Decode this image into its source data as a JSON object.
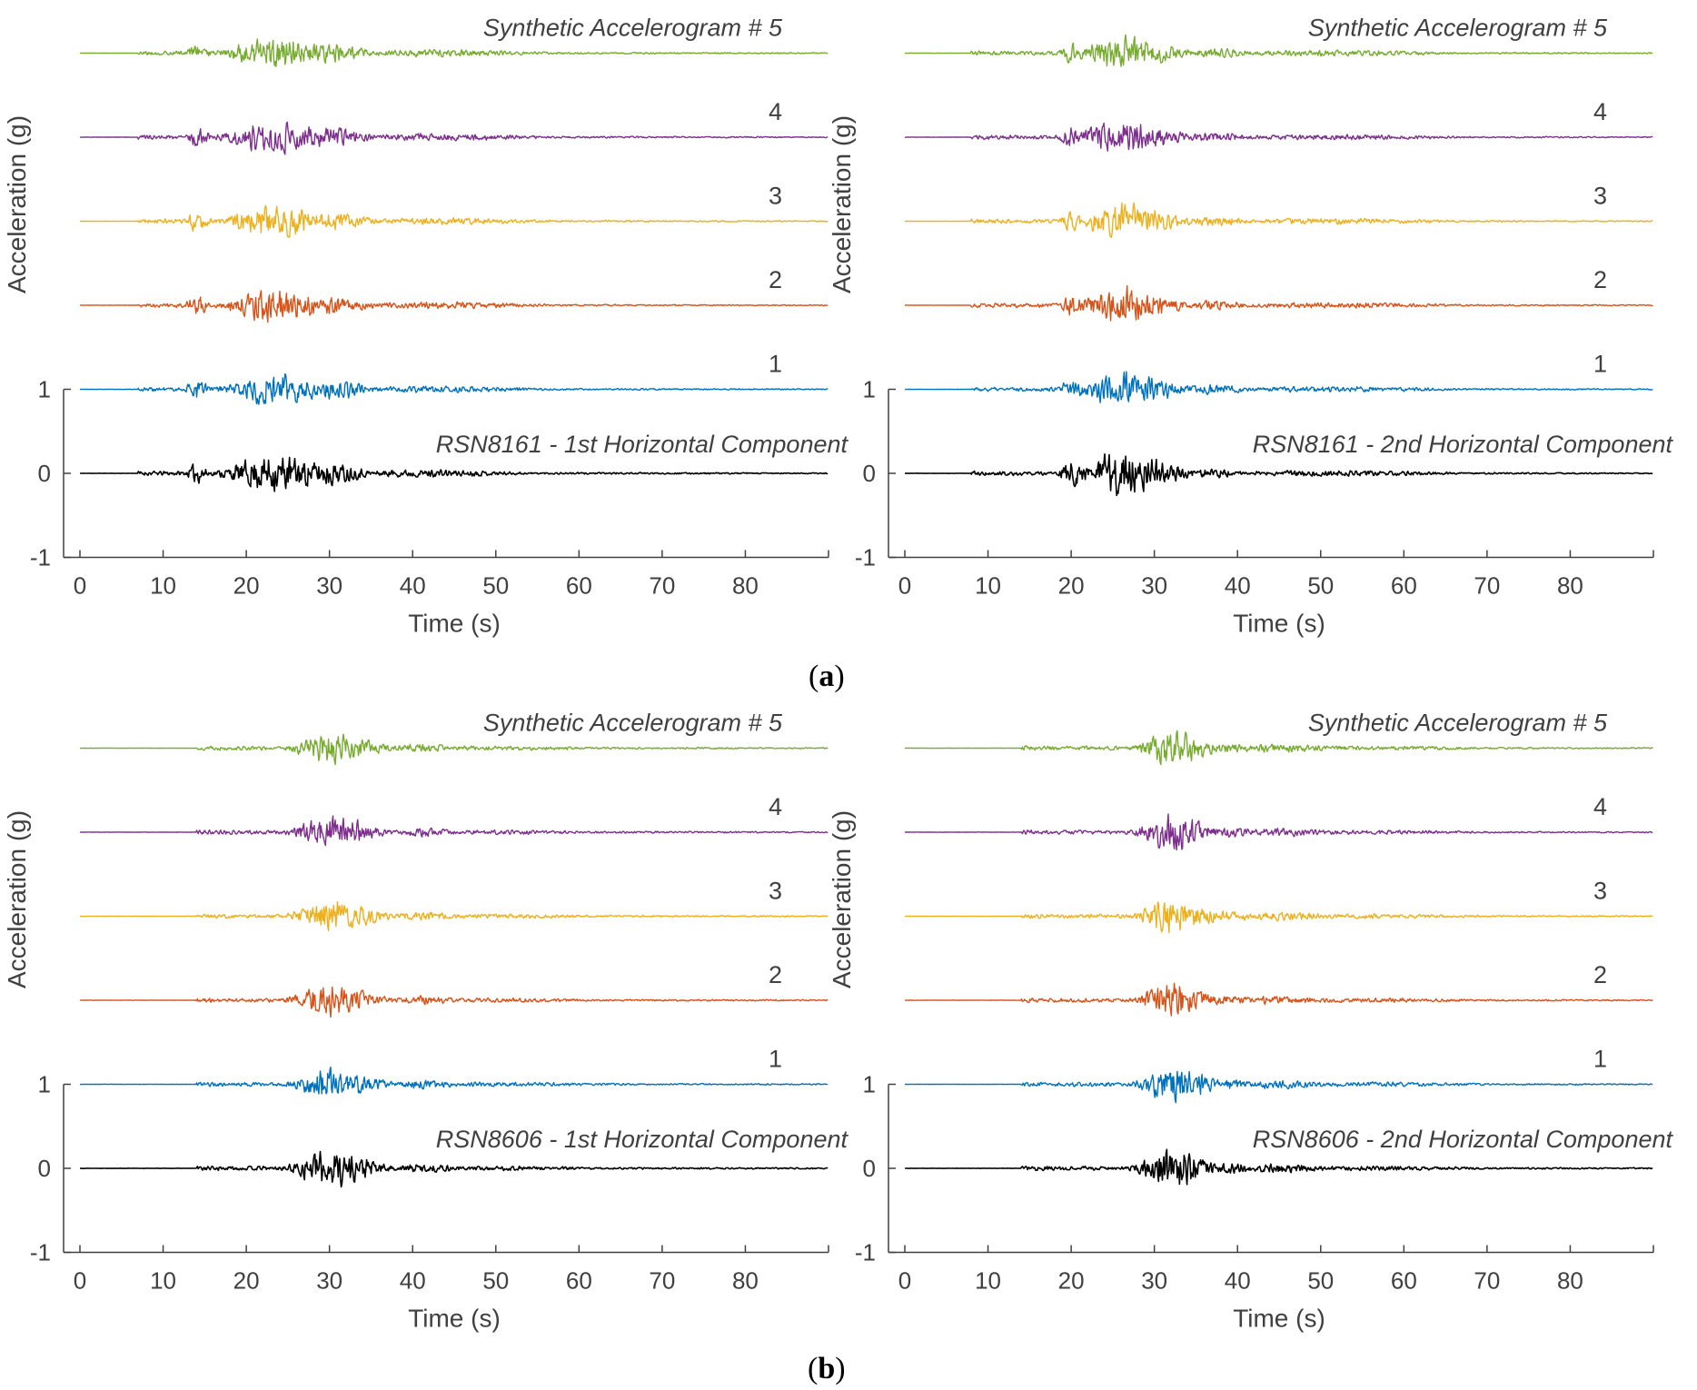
{
  "figure": {
    "labels": [
      {
        "open": "(",
        "letter": "a",
        "close": ")"
      },
      {
        "open": "(",
        "letter": "b",
        "close": ")"
      }
    ]
  },
  "colors": {
    "record": "#000000",
    "syn1": "#0072bd",
    "syn2": "#d95319",
    "syn3": "#edb120",
    "syn4": "#7e2f8e",
    "syn5": "#77ac30",
    "axis": "#404040",
    "text": "#404040"
  },
  "chart_data": [
    {
      "type": "line",
      "group": "a",
      "ylabel": "Acceleration (g)",
      "xlabel": "Time (s)",
      "xlim": [
        0,
        90
      ],
      "ylim": [
        -1,
        1
      ],
      "xticks": [
        0,
        10,
        20,
        30,
        40,
        50,
        60,
        70,
        80
      ],
      "yticks": [
        -1,
        0,
        1
      ],
      "record_label": "RSN8161 - 1st Horizontal Component",
      "series": [
        {
          "name": "RSN8161 - 1st Horizontal Component",
          "offset": 0,
          "color_key": "record",
          "label_text": "RSN8161 - 1st Horizontal Component",
          "start": 7,
          "bursts": [
            [
              14,
              0.9,
              0.14
            ],
            [
              23,
              4.5,
              0.25
            ],
            [
              29,
              3,
              0.18
            ],
            [
              40,
              8,
              0.05
            ]
          ],
          "peak": 0.32,
          "seed": 11
        },
        {
          "name": "Synthetic Accelerogram # 1",
          "offset": 1,
          "color_key": "syn1",
          "label_text": "1",
          "start": 7,
          "bursts": [
            [
              14,
              1.0,
              0.16
            ],
            [
              23,
              4.5,
              0.22
            ],
            [
              30,
              3,
              0.14
            ],
            [
              42,
              8,
              0.05
            ]
          ],
          "peak": 0.3,
          "seed": 21
        },
        {
          "name": "Synthetic Accelerogram # 2",
          "offset": 2,
          "color_key": "syn2",
          "label_text": "2",
          "start": 7,
          "bursts": [
            [
              14,
              1.0,
              0.14
            ],
            [
              23,
              4.5,
              0.22
            ],
            [
              30,
              3,
              0.13
            ],
            [
              42,
              8,
              0.05
            ]
          ],
          "peak": 0.3,
          "seed": 31
        },
        {
          "name": "Synthetic Accelerogram # 3",
          "offset": 3,
          "color_key": "syn3",
          "label_text": "3",
          "start": 7,
          "bursts": [
            [
              14,
              1.0,
              0.14
            ],
            [
              23,
              4.5,
              0.22
            ],
            [
              30,
              3,
              0.13
            ],
            [
              42,
              8,
              0.05
            ]
          ],
          "peak": 0.3,
          "seed": 41
        },
        {
          "name": "Synthetic Accelerogram # 4",
          "offset": 4,
          "color_key": "syn4",
          "label_text": "4",
          "start": 7,
          "bursts": [
            [
              14,
              1.0,
              0.14
            ],
            [
              23,
              4.5,
              0.22
            ],
            [
              30,
              3,
              0.13
            ],
            [
              42,
              8,
              0.05
            ]
          ],
          "peak": 0.3,
          "seed": 51
        },
        {
          "name": "Synthetic Accelerogram # 5",
          "offset": 5,
          "color_key": "syn5",
          "label_text": "Synthetic Accelerogram # 5",
          "start": 7,
          "bursts": [
            [
              14,
              1.0,
              0.13
            ],
            [
              23,
              4.5,
              0.22
            ],
            [
              30,
              3,
              0.13
            ],
            [
              42,
              8,
              0.05
            ]
          ],
          "peak": 0.3,
          "seed": 61
        }
      ]
    },
    {
      "type": "line",
      "group": "a",
      "ylabel": "Acceleration (g)",
      "xlabel": "Time (s)",
      "xlim": [
        0,
        90
      ],
      "ylim": [
        -1,
        1
      ],
      "xticks": [
        0,
        10,
        20,
        30,
        40,
        50,
        60,
        70,
        80
      ],
      "yticks": [
        -1,
        0,
        1
      ],
      "record_label": "RSN8161 - 2nd Horizontal Component",
      "series": [
        {
          "name": "RSN8161 - 2nd Horizontal Component",
          "offset": 0,
          "color_key": "record",
          "label_text": "RSN8161 - 2nd Horizontal Component",
          "start": 8,
          "bursts": [
            [
              20,
              1.2,
              0.18
            ],
            [
              26,
              4,
              0.3
            ],
            [
              37,
              2,
              0.07
            ],
            [
              50,
              10,
              0.04
            ]
          ],
          "peak": 0.4,
          "seed": 12
        },
        {
          "name": "Synthetic Accelerogram # 1",
          "offset": 1,
          "color_key": "syn1",
          "label_text": "1",
          "start": 8,
          "bursts": [
            [
              20,
              1.2,
              0.14
            ],
            [
              26,
              4,
              0.24
            ],
            [
              37,
              3,
              0.07
            ],
            [
              50,
              10,
              0.04
            ]
          ],
          "peak": 0.3,
          "seed": 22
        },
        {
          "name": "Synthetic Accelerogram # 2",
          "offset": 2,
          "color_key": "syn2",
          "label_text": "2",
          "start": 8,
          "bursts": [
            [
              20,
              1.2,
              0.14
            ],
            [
              26,
              4,
              0.24
            ],
            [
              37,
              3,
              0.07
            ],
            [
              50,
              10,
              0.04
            ]
          ],
          "peak": 0.32,
          "seed": 32
        },
        {
          "name": "Synthetic Accelerogram # 3",
          "offset": 3,
          "color_key": "syn3",
          "label_text": "3",
          "start": 8,
          "bursts": [
            [
              20,
              1.2,
              0.14
            ],
            [
              26,
              4,
              0.24
            ],
            [
              37,
              3,
              0.07
            ],
            [
              50,
              10,
              0.04
            ]
          ],
          "peak": 0.3,
          "seed": 42
        },
        {
          "name": "Synthetic Accelerogram # 4",
          "offset": 4,
          "color_key": "syn4",
          "label_text": "4",
          "start": 8,
          "bursts": [
            [
              20,
              1.2,
              0.14
            ],
            [
              26,
              4,
              0.24
            ],
            [
              37,
              3,
              0.07
            ],
            [
              50,
              10,
              0.04
            ]
          ],
          "peak": 0.32,
          "seed": 52
        },
        {
          "name": "Synthetic Accelerogram # 5",
          "offset": 5,
          "color_key": "syn5",
          "label_text": "Synthetic Accelerogram # 5",
          "start": 8,
          "bursts": [
            [
              20,
              1.2,
              0.14
            ],
            [
              26,
              4,
              0.24
            ],
            [
              37,
              3,
              0.07
            ],
            [
              50,
              10,
              0.04
            ]
          ],
          "peak": 0.32,
          "seed": 62
        }
      ]
    },
    {
      "type": "line",
      "group": "b",
      "ylabel": "Acceleration (g)",
      "xlabel": "Time (s)",
      "xlim": [
        0,
        90
      ],
      "ylim": [
        -1,
        1
      ],
      "xticks": [
        0,
        10,
        20,
        30,
        40,
        50,
        60,
        70,
        80
      ],
      "yticks": [
        -1,
        0,
        1
      ],
      "record_label": "RSN8606 - 1st Horizontal Component",
      "series": [
        {
          "name": "RSN8606 - 1st Horizontal Component",
          "offset": 0,
          "color_key": "record",
          "label_text": "RSN8606 - 1st Horizontal Component",
          "start": 14,
          "bursts": [
            [
              30,
              3.5,
              0.26
            ],
            [
              41,
              3,
              0.06
            ],
            [
              50,
              8,
              0.03
            ]
          ],
          "peak": 0.28,
          "seed": 13
        },
        {
          "name": "Synthetic Accelerogram # 1",
          "offset": 1,
          "color_key": "syn1",
          "label_text": "1",
          "start": 14,
          "bursts": [
            [
              30,
              3.5,
              0.22
            ],
            [
              41,
              3,
              0.06
            ],
            [
              50,
              8,
              0.03
            ]
          ],
          "peak": 0.22,
          "seed": 23
        },
        {
          "name": "Synthetic Accelerogram # 2",
          "offset": 2,
          "color_key": "syn2",
          "label_text": "2",
          "start": 14,
          "bursts": [
            [
              30,
              3.5,
              0.22
            ],
            [
              41,
              3,
              0.06
            ],
            [
              50,
              8,
              0.03
            ]
          ],
          "peak": 0.22,
          "seed": 33
        },
        {
          "name": "Synthetic Accelerogram # 3",
          "offset": 3,
          "color_key": "syn3",
          "label_text": "3",
          "start": 14,
          "bursts": [
            [
              30,
              3.5,
              0.22
            ],
            [
              41,
              3,
              0.06
            ],
            [
              50,
              8,
              0.03
            ]
          ],
          "peak": 0.22,
          "seed": 43
        },
        {
          "name": "Synthetic Accelerogram # 4",
          "offset": 4,
          "color_key": "syn4",
          "label_text": "4",
          "start": 14,
          "bursts": [
            [
              30,
              3.5,
              0.22
            ],
            [
              41,
              3,
              0.06
            ],
            [
              50,
              8,
              0.03
            ]
          ],
          "peak": 0.22,
          "seed": 53
        },
        {
          "name": "Synthetic Accelerogram # 5",
          "offset": 5,
          "color_key": "syn5",
          "label_text": "Synthetic Accelerogram # 5",
          "start": 14,
          "bursts": [
            [
              30,
              3.5,
              0.22
            ],
            [
              41,
              3,
              0.06
            ],
            [
              50,
              8,
              0.03
            ]
          ],
          "peak": 0.22,
          "seed": 63
        }
      ]
    },
    {
      "type": "line",
      "group": "b",
      "ylabel": "Acceleration (g)",
      "xlabel": "Time (s)",
      "xlim": [
        0,
        90
      ],
      "ylim": [
        -1,
        1
      ],
      "xticks": [
        0,
        10,
        20,
        30,
        40,
        50,
        60,
        70,
        80
      ],
      "yticks": [
        -1,
        0,
        1
      ],
      "record_label": "RSN8606 - 2nd Horizontal Component",
      "series": [
        {
          "name": "RSN8606 - 2nd Horizontal Component",
          "offset": 0,
          "color_key": "record",
          "label_text": "RSN8606 - 2nd Horizontal Component",
          "start": 14,
          "bursts": [
            [
              32,
              3,
              0.28
            ],
            [
              39,
              2,
              0.08
            ],
            [
              45,
              4,
              0.06
            ],
            [
              55,
              10,
              0.03
            ]
          ],
          "peak": 0.28,
          "seed": 14
        },
        {
          "name": "Synthetic Accelerogram # 1",
          "offset": 1,
          "color_key": "syn1",
          "label_text": "1",
          "start": 14,
          "bursts": [
            [
              32,
              3,
              0.24
            ],
            [
              39,
              2,
              0.07
            ],
            [
              45,
              4,
              0.06
            ],
            [
              55,
              10,
              0.03
            ]
          ],
          "peak": 0.26,
          "seed": 24
        },
        {
          "name": "Synthetic Accelerogram # 2",
          "offset": 2,
          "color_key": "syn2",
          "label_text": "2",
          "start": 14,
          "bursts": [
            [
              32,
              3,
              0.24
            ],
            [
              39,
              2,
              0.07
            ],
            [
              45,
              4,
              0.06
            ],
            [
              55,
              10,
              0.03
            ]
          ],
          "peak": 0.24,
          "seed": 34
        },
        {
          "name": "Synthetic Accelerogram # 3",
          "offset": 3,
          "color_key": "syn3",
          "label_text": "3",
          "start": 14,
          "bursts": [
            [
              32,
              3,
              0.24
            ],
            [
              39,
              2,
              0.07
            ],
            [
              45,
              4,
              0.06
            ],
            [
              55,
              10,
              0.03
            ]
          ],
          "peak": 0.24,
          "seed": 44
        },
        {
          "name": "Synthetic Accelerogram # 4",
          "offset": 4,
          "color_key": "syn4",
          "label_text": "4",
          "start": 14,
          "bursts": [
            [
              32,
              3,
              0.24
            ],
            [
              39,
              2,
              0.07
            ],
            [
              45,
              4,
              0.06
            ],
            [
              55,
              10,
              0.03
            ]
          ],
          "peak": 0.26,
          "seed": 54
        },
        {
          "name": "Synthetic Accelerogram # 5",
          "offset": 5,
          "color_key": "syn5",
          "label_text": "Synthetic Accelerogram # 5",
          "start": 14,
          "bursts": [
            [
              32,
              3,
              0.24
            ],
            [
              39,
              2,
              0.07
            ],
            [
              45,
              4,
              0.06
            ],
            [
              55,
              10,
              0.03
            ]
          ],
          "peak": 0.24,
          "seed": 64
        }
      ]
    }
  ]
}
